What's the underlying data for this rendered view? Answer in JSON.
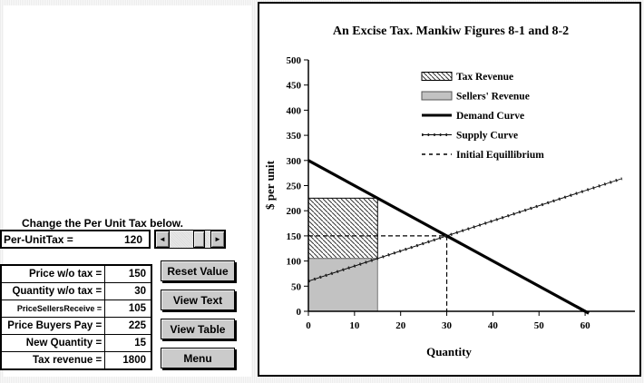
{
  "colors": {
    "panel_bg": "#ffffff",
    "button_face": "#cbcbcb",
    "scroll_face": "#c9c9c9",
    "sellers_fill": "#c2c2c2",
    "sellers_border": "#777777",
    "hatch_line": "#333333",
    "line_black": "#000000"
  },
  "left_panel": {
    "heading": "Change the Per Unit Tax below.",
    "tax_control": {
      "label": "Per-UnitTax  =",
      "value": "120",
      "left_arrow_icon": "◄",
      "right_arrow_icon": "►"
    },
    "table": {
      "rows": [
        {
          "label": "Price w/o tax  =",
          "value": "150",
          "small": false
        },
        {
          "label": "Quantity w/o tax =",
          "value": "30",
          "small": false
        },
        {
          "label": "PriceSellersReceive =",
          "value": "105",
          "small": true
        },
        {
          "label": "Price Buyers Pay =",
          "value": "225",
          "small": false
        },
        {
          "label": "New Quantity =",
          "value": "15",
          "small": false
        },
        {
          "label": "Tax revenue =",
          "value": "1800",
          "small": false
        }
      ]
    },
    "buttons": [
      {
        "id": "reset-value-button",
        "label": "Reset Value"
      },
      {
        "id": "view-text-button",
        "label": "View Text"
      },
      {
        "id": "view-table-button",
        "label": "View Table"
      },
      {
        "id": "menu-button",
        "label": "Menu"
      }
    ]
  },
  "chart_data": {
    "type": "line",
    "title": "An Excise Tax. Mankiw Figures 8-1 and 8-2",
    "xlabel": "Quantity",
    "ylabel": "$ per unit",
    "xlim": [
      0,
      70.8
    ],
    "ylim": [
      0,
      500
    ],
    "xticks": [
      0,
      10,
      20,
      30,
      40,
      50,
      60
    ],
    "yticks": [
      0,
      50,
      100,
      150,
      200,
      250,
      300,
      350,
      400,
      450,
      500
    ],
    "grid": false,
    "legend_position": "upper-center-inside",
    "series": [
      {
        "name": "Demand Curve",
        "style": "thick-solid",
        "points": [
          [
            0,
            300
          ],
          [
            60.8,
            -4
          ]
        ]
      },
      {
        "name": "Supply Curve",
        "style": "beaded-thin",
        "points": [
          [
            0,
            60
          ],
          [
            68,
            264
          ]
        ]
      }
    ],
    "regions": [
      {
        "name": "Tax Revenue",
        "style": "hatch",
        "q": [
          0,
          15
        ],
        "p": [
          105,
          225
        ]
      },
      {
        "name": "Sellers' Revenue",
        "style": "gray",
        "q": [
          0,
          15
        ],
        "p": [
          0,
          105
        ]
      }
    ],
    "initial_equilibrium": {
      "q": 30,
      "p": 150,
      "style": "dashed"
    },
    "legend": [
      {
        "label": "Tax Revenue",
        "swatch": "hatch"
      },
      {
        "label": "Sellers' Revenue",
        "swatch": "gray"
      },
      {
        "label": "Demand Curve",
        "swatch": "thick-line"
      },
      {
        "label": "Supply Curve",
        "swatch": "beaded-line"
      },
      {
        "label": "Initial Equillibrium",
        "swatch": "dashed-line"
      }
    ]
  }
}
